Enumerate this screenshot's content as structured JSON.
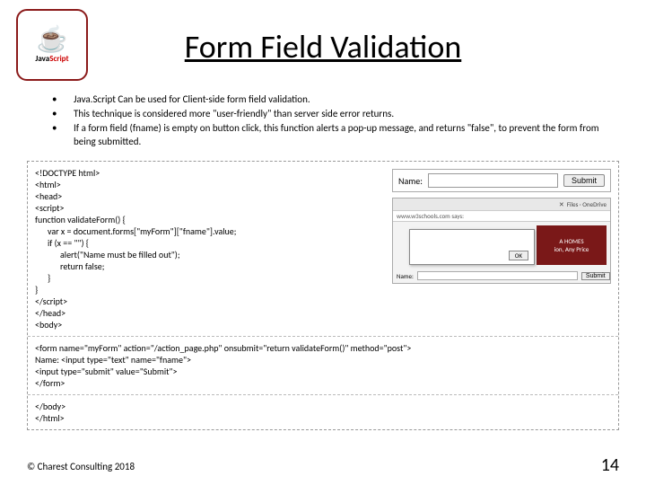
{
  "logo": {
    "brand_left": "Java",
    "brand_right": "Script"
  },
  "title": "Form Field Validation",
  "bullets": [
    "Java.Script Can be used for Client-side form field validation.",
    "This technique is considered more \"user-friendly\" than server side error returns.",
    "If a form field (fname) is empty on button click, this function alerts a pop-up message, and returns \"false\", to prevent the form from being submitted."
  ],
  "code": {
    "l1": "<!DOCTYPE html>",
    "l2": "<html>",
    "l3": "<head>",
    "l4": "<script>",
    "l5": "function validateForm() {",
    "l6": "var x = document.forms[\"myForm\"][\"fname\"].value;",
    "l7": "if (x == \"\") {",
    "l8": "alert(\"Name must be filled out\");",
    "l9": "return false;",
    "l10": "}",
    "l11": "}",
    "l12": "</script>",
    "l13": "</head>",
    "l14": "<body>",
    "f1": "<form name=\"myForm\" action=\"/action_page.php\" onsubmit=\"return validateForm()\" method=\"post\">",
    "f2": "Name: <input type=\"text\" name=\"fname\">",
    "f3": "<input type=\"submit\" value=\"Submit\">",
    "f4": "</form>",
    "e1": "</body>",
    "e2": "</html>"
  },
  "thumb1": {
    "label": "Name:",
    "button": "Submit"
  },
  "thumb2": {
    "topbar_text": "Files · OneDrive",
    "addr": "www.w3schools.com says:",
    "dialog_text": "",
    "dialog_btn": "OK",
    "ad_line1": "A HOMES",
    "ad_line2": "ion, Any Price",
    "form_label": "Name:",
    "form_btn": "Submit"
  },
  "footer": "© Charest Consulting 2018",
  "pagenum": "14"
}
